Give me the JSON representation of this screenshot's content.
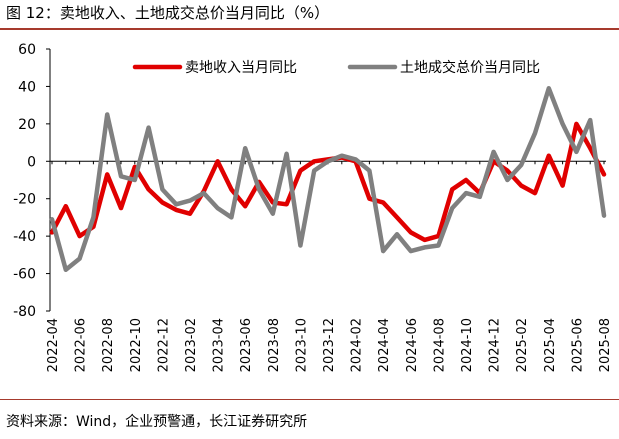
{
  "title": "图 12：卖地收入、土地成交总价当月同比（%）",
  "source": "资料来源：Wind，企业预警通，长江证券研究所",
  "chart_data": {
    "type": "line",
    "x": [
      "2022-04",
      "2022-05",
      "2022-06",
      "2022-07",
      "2022-08",
      "2022-09",
      "2022-10",
      "2022-11",
      "2022-12",
      "2023-01",
      "2023-02",
      "2023-03",
      "2023-04",
      "2023-05",
      "2023-06",
      "2023-07",
      "2023-08",
      "2023-09",
      "2023-10",
      "2023-11",
      "2023-12",
      "2024-01",
      "2024-02",
      "2024-03",
      "2024-04",
      "2024-05",
      "2024-06",
      "2024-07",
      "2024-08",
      "2024-09",
      "2024-10",
      "2024-11",
      "2024-12",
      "2025-01",
      "2025-02",
      "2025-03",
      "2025-04",
      "2025-05",
      "2025-06",
      "2025-07",
      "2025-08"
    ],
    "x_tick_labels": [
      "2022-04",
      "2022-06",
      "2022-08",
      "2022-10",
      "2022-12",
      "2023-02",
      "2023-04",
      "2023-06",
      "2023-08",
      "2023-10",
      "2023-12",
      "2024-02",
      "2024-04",
      "2024-06",
      "2024-08",
      "2024-10",
      "2024-12",
      "2025-02",
      "2025-04",
      "2025-06",
      "2025-08"
    ],
    "ylim": [
      -80,
      60
    ],
    "yticks": [
      -80,
      -60,
      -40,
      -20,
      0,
      20,
      40,
      60
    ],
    "series": [
      {
        "name": "卖地收入当月同比",
        "color": "#e00000",
        "values": [
          -38,
          -24,
          -40,
          -35,
          -7,
          -25,
          -3,
          -15,
          -22,
          -26,
          -28,
          -16,
          0,
          -15,
          -24,
          -11,
          -22,
          -23,
          -5,
          0,
          1,
          2,
          0,
          -20,
          -22,
          -30,
          -38,
          -42,
          -40,
          -15,
          -10,
          -17,
          0,
          -5,
          -13,
          -17,
          3,
          -13,
          20,
          7,
          -7
        ]
      },
      {
        "name": "土地成交总价当月同比",
        "color": "#808080",
        "values": [
          -31,
          -58,
          -52,
          -30,
          25,
          -8,
          -10,
          18,
          -15,
          -23,
          -21,
          -17,
          -25,
          -30,
          7,
          -15,
          -28,
          4,
          -45,
          -5,
          0,
          3,
          1,
          -5,
          -48,
          -39,
          -48,
          -46,
          -45,
          -25,
          -17,
          -19,
          5,
          -10,
          -2,
          15,
          39,
          20,
          5,
          22,
          -29
        ]
      }
    ]
  }
}
